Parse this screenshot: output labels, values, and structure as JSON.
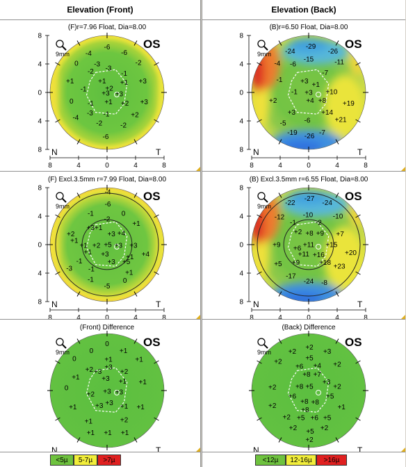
{
  "columns": [
    {
      "title": "Elevation (Front)",
      "panels": [
        {
          "subtitle": "(F)r=7.96 Float, Dia=8.00",
          "eye": "OS",
          "zoom_label": "9mm",
          "nasal_label": "N",
          "temporal_label": "T",
          "x_ticks": [
            "8",
            "4",
            "0",
            "4",
            "8"
          ],
          "y_ticks": [
            "8",
            "4",
            "0",
            "4",
            "8"
          ],
          "map_style": "front",
          "inner_circle": false,
          "values": [
            [
              "-6",
              "cx:0,cy:-6.4"
            ],
            [
              "-4",
              "cx:-2.6,cy:-5.5"
            ],
            [
              "-6",
              "cx:2.4,cy:-5.6"
            ],
            [
              "-3",
              "cx:-1.4,cy:-4"
            ],
            [
              "-2",
              "cx:4.4,cy:-4.2"
            ],
            [
              "0",
              "cx:-4.3,cy:-4.1"
            ],
            [
              "-2",
              "cx:-2.3,cy:-3"
            ],
            [
              "-3",
              "cx:0.2,cy:-3.4"
            ],
            [
              "-1",
              "cx:2.4,cy:-2.7"
            ],
            [
              "+1",
              "cx:-5.2,cy:-1.6"
            ],
            [
              "+1",
              "cx:-0.7,cy:-1.6"
            ],
            [
              "+1",
              "cx:2.4,cy:-1.4"
            ],
            [
              "+3",
              "cx:5,cy:-1.6"
            ],
            [
              "-1",
              "cx:-3.3,cy:-0.5"
            ],
            [
              "+2",
              "cx:0.3,cy:-0.6"
            ],
            [
              "+3",
              "cx:-0.2,cy:0.1"
            ],
            [
              "+3",
              "cx:1.7,cy:0.2"
            ],
            [
              "0",
              "cx:-5,cy:1.2"
            ],
            [
              "-1",
              "cx:-2.3,cy:1.5"
            ],
            [
              "+1",
              "cx:0.2,cy:1.3"
            ],
            [
              "+2",
              "cx:2.5,cy:1.5"
            ],
            [
              "+3",
              "cx:5.2,cy:1.3"
            ],
            [
              "-3",
              "cx:-2.4,cy:2.9"
            ],
            [
              "-1",
              "cx:-0.1,cy:3"
            ],
            [
              "+2",
              "cx:3.9,cy:3.1"
            ],
            [
              "-4",
              "cx:-4.4,cy:3.5"
            ],
            [
              "-2",
              "cx:-1.1,cy:4.3"
            ],
            [
              "-2",
              "cx:2.3,cy:4.6"
            ],
            [
              "-6",
              "cx:-0.2,cy:6.2"
            ]
          ]
        },
        {
          "subtitle": "(F) Excl.3.5mm r=7.99 Float, Dia=8.00",
          "eye": "OS",
          "zoom_label": "9mm",
          "nasal_label": "N",
          "temporal_label": "T",
          "x_ticks": [
            "8",
            "4",
            "0",
            "4",
            "8"
          ],
          "y_ticks": [
            "8",
            "4",
            "0",
            "4",
            "8"
          ],
          "map_style": "front_excl",
          "inner_circle": true,
          "values": [
            [
              "-4",
              "cx:0.1,cy:-7.4"
            ],
            [
              "-6",
              "cx:0.1,cy:-5.7"
            ],
            [
              "-1",
              "cx:-2.3,cy:-4.4"
            ],
            [
              "0",
              "cx:2.3,cy:-4.4"
            ],
            [
              "-2",
              "cx:0,cy:-3.6"
            ],
            [
              "+3",
              "cx:-2.3,cy:-2.4"
            ],
            [
              "+1",
              "cx:-1.2,cy:-2.4"
            ],
            [
              "+1",
              "cx:4.1,cy:-3"
            ],
            [
              "+2",
              "cx:-5.1,cy:-1.5"
            ],
            [
              "+3",
              "cx:0.6,cy:-1.5"
            ],
            [
              "+4",
              "cx:2,cy:-1.6"
            ],
            [
              "+1",
              "cx:-4.6,cy:-0.6"
            ],
            [
              "+1",
              "cx:-3.3,cy:0.1"
            ],
            [
              "+2",
              "cx:-1.5,cy:0.1"
            ],
            [
              "+5",
              "cx:0.1,cy:0"
            ],
            [
              "+3",
              "cx:1.6,cy:0.1"
            ],
            [
              "+3",
              "cx:3.7,cy:0.1"
            ],
            [
              "+1",
              "cx:-2.7,cy:1"
            ],
            [
              "+3",
              "cx:-0.3,cy:1.3"
            ],
            [
              "+1",
              "cx:3.2,cy:1.7"
            ],
            [
              "+4",
              "cx:5.4,cy:1.3"
            ],
            [
              "-1",
              "cx:-3.9,cy:2.3"
            ],
            [
              "+3",
              "cx:0.6,cy:2.4"
            ],
            [
              "+5",
              "cx:2.7,cy:2.4"
            ],
            [
              "-3",
              "cx:-5.3,cy:3.3"
            ],
            [
              "-1",
              "cx:-2.2,cy:3.4"
            ],
            [
              "+1",
              "cx:3.1,cy:3.9"
            ],
            [
              "-1",
              "cx:-2.3,cy:4.9"
            ],
            [
              "0",
              "cx:2.5,cy:5"
            ],
            [
              "-5",
              "cx:0,cy:5.8"
            ]
          ]
        },
        {
          "subtitle": "(Front) Difference",
          "eye": "OS",
          "zoom_label": "9mm",
          "nasal_label": "N",
          "temporal_label": "T",
          "x_ticks": [],
          "y_ticks": [],
          "map_style": "diff",
          "inner_circle": false,
          "values": [
            [
              "0",
              "cx:0,cy:-6.6"
            ],
            [
              "0",
              "cx:-2.2,cy:-5.6"
            ],
            [
              "+1",
              "cx:2.3,cy:-5.6"
            ],
            [
              "0",
              "cx:-4.6,cy:-4.5"
            ],
            [
              "+1",
              "cx:0.2,cy:-4.4"
            ],
            [
              "+1",
              "cx:4.5,cy:-4.4"
            ],
            [
              "+2",
              "cx:-2.5,cy:-3"
            ],
            [
              "+3",
              "cx:-1.3,cy:-2.7"
            ],
            [
              "+2",
              "cx:2.4,cy:-2.7"
            ],
            [
              "+3",
              "cx:0.2,cy:-3.3"
            ],
            [
              "+1",
              "cx:-4.4,cy:-1.9"
            ],
            [
              "+3",
              "cx:-0.2,cy:-1.7"
            ],
            [
              "+1",
              "cx:2.2,cy:-1.3"
            ],
            [
              "+1",
              "cx:5,cy:-1.2"
            ],
            [
              "0",
              "cx:-5.7,cy:-0.4"
            ],
            [
              "+2",
              "cx:-2.3,cy:0.5"
            ],
            [
              "+3",
              "cx:0,cy:0.1"
            ],
            [
              "+3",
              "cx:1.7,cy:0.2"
            ],
            [
              "+1",
              "cx:-4.8,cy:2.3"
            ],
            [
              "+3",
              "cx:-1.1,cy:2.1"
            ],
            [
              "+3",
              "cx:0.3,cy:1.7"
            ],
            [
              "+1",
              "cx:2.4,cy:2.2"
            ],
            [
              "+1",
              "cx:4.7,cy:2.3"
            ],
            [
              "+1",
              "cx:-2.6,cy:4.3"
            ],
            [
              "+2",
              "cx:2.4,cy:4.1"
            ],
            [
              "+1",
              "cx:-2.3,cy:5.9"
            ],
            [
              "+1",
              "cx:0.1,cy:5.9"
            ],
            [
              "+1",
              "cx:2.5,cy:5.9"
            ]
          ]
        }
      ],
      "legend": [
        {
          "label": "<5µ",
          "color": "#6ec23e"
        },
        {
          "label": "5-7µ",
          "color": "#f2ee3a"
        },
        {
          "label": ">7µ",
          "color": "#e02020"
        }
      ]
    },
    {
      "title": "Elevation (Back)",
      "panels": [
        {
          "subtitle": "(B)r=6.50 Float, Dia=8.00",
          "eye": "OS",
          "zoom_label": "9mm",
          "nasal_label": "N",
          "temporal_label": "T",
          "x_ticks": [
            "8",
            "4",
            "0",
            "4",
            "8"
          ],
          "y_ticks": [
            "8",
            "4",
            "0",
            "4",
            "8"
          ],
          "map_style": "back",
          "inner_circle": false,
          "values": [
            [
              "-29",
              "cx:0.3,cy:-6.5"
            ],
            [
              "-24",
              "cx:-2.6,cy:-5.8"
            ],
            [
              "-26",
              "cx:3.4,cy:-5.8"
            ],
            [
              "-15",
              "cx:0,cy:-4.7"
            ],
            [
              "-4",
              "cx:-4.4,cy:-4.1"
            ],
            [
              "-6",
              "cx:-2.2,cy:-4"
            ],
            [
              "-11",
              "cx:4.3,cy:-4.3"
            ],
            [
              "-7",
              "cx:2.3,cy:-2.8"
            ],
            [
              "-1",
              "cx:-4.1,cy:-1.8"
            ],
            [
              "+3",
              "cx:-0.6,cy:-1.6"
            ],
            [
              "+1",
              "cx:1,cy:-1.1"
            ],
            [
              "-1",
              "cx:-2,cy:-0.1"
            ],
            [
              "+3",
              "cx:0,cy:0"
            ],
            [
              "+10",
              "cx:3.2,cy:-0.1"
            ],
            [
              "+2",
              "cx:-5,cy:1.1"
            ],
            [
              "+4",
              "cx:0.2,cy:1.1"
            ],
            [
              "+8",
              "cx:1.9,cy:1.1"
            ],
            [
              "+19",
              "cx:5.6,cy:1.5"
            ],
            [
              "+3",
              "cx:-2.4,cy:2.8"
            ],
            [
              "+14",
              "cx:2.6,cy:2.8"
            ],
            [
              "-5",
              "cx:-3.6,cy:4.3"
            ],
            [
              "+21",
              "cx:4.5,cy:3.8"
            ],
            [
              "-6",
              "cx:-0.2,cy:3.9"
            ],
            [
              "-19",
              "cx:-2.3,cy:5.6"
            ],
            [
              "-26",
              "cx:0.1,cy:6.1"
            ],
            [
              "-7",
              "cx:1.9,cy:5.6"
            ]
          ]
        },
        {
          "subtitle": "(B) Excl.3.5mm r=6.55 Float, Dia=8.00",
          "eye": "OS",
          "zoom_label": "9mm",
          "nasal_label": "N",
          "temporal_label": "T",
          "x_ticks": [
            "8",
            "4",
            "0",
            "4",
            "8"
          ],
          "y_ticks": [
            "8",
            "4",
            "0",
            "4",
            "8"
          ],
          "map_style": "back_excl",
          "inner_circle": true,
          "values": [
            [
              "-27",
              "cx:0.1,cy:-6.5"
            ],
            [
              "-22",
              "cx:-2.6,cy:-5.9"
            ],
            [
              "-24",
              "cx:2.6,cy:-5.9"
            ],
            [
              "-12",
              "cx:-4.1,cy:-3.9"
            ],
            [
              "-10",
              "cx:-0.1,cy:-4.2"
            ],
            [
              "-10",
              "cx:4.1,cy:-4"
            ],
            [
              "-1",
              "cx:-2.2,cy:-3.1"
            ],
            [
              "-2",
              "cx:1.4,cy:-3.1"
            ],
            [
              "+2",
              "cx:-1.5,cy:-1.8"
            ],
            [
              "+8",
              "cx:0.1,cy:-1.6"
            ],
            [
              "+9",
              "cx:1.6,cy:-1.6"
            ],
            [
              "+7",
              "cx:4.4,cy:-1.5"
            ],
            [
              "+9",
              "cx:-4.5,cy:0"
            ],
            [
              "+11",
              "cx:0,cy:0"
            ],
            [
              "+15",
              "cx:3.2,cy:0"
            ],
            [
              "+6",
              "cx:-1.6,cy:0.5"
            ],
            [
              "+11",
              "cx:-0.7,cy:1.3"
            ],
            [
              "+16",
              "cx:1.4,cy:1.4"
            ],
            [
              "+20",
              "cx:5.9,cy:1.1"
            ],
            [
              "+5",
              "cx:-4.3,cy:2.7"
            ],
            [
              "+9",
              "cx:-1.8,cy:2.5"
            ],
            [
              "+18",
              "cx:2.3,cy:2.5"
            ],
            [
              "+23",
              "cx:4.3,cy:3"
            ],
            [
              "-17",
              "cx:-2.5,cy:4.4"
            ],
            [
              "-24",
              "cx:0,cy:5.1"
            ],
            [
              "-8",
              "cx:2.2,cy:5.3"
            ]
          ]
        },
        {
          "subtitle": "(Back) Difference",
          "eye": "OS",
          "zoom_label": "9mm",
          "nasal_label": "N",
          "temporal_label": "T",
          "x_ticks": [],
          "y_ticks": [],
          "map_style": "diff",
          "inner_circle": false,
          "values": [
            [
              "+2",
              "cx:-2.3,cy:-5.5"
            ],
            [
              "+2",
              "cx:0.1,cy:-6.1"
            ],
            [
              "+3",
              "cx:2.6,cy:-5.5"
            ],
            [
              "+5",
              "cx:0.1,cy:-4.6"
            ],
            [
              "+2",
              "cx:-4.3,cy:-4.1"
            ],
            [
              "+6",
              "cx:-1.3,cy:-3.4"
            ],
            [
              "+4",
              "cx:1.2,cy:-3.5"
            ],
            [
              "+2",
              "cx:4,cy:-3.7"
            ],
            [
              "+8",
              "cx:-0.3,cy:-2.3"
            ],
            [
              "+7",
              "cx:1.2,cy:-2.3"
            ],
            [
              "+3",
              "cx:2.5,cy:-1.2"
            ],
            [
              "+2",
              "cx:-5.1,cy:-0.5"
            ],
            [
              "+8",
              "cx:-1.3,cy:-0.6"
            ],
            [
              "+5",
              "cx:0.1,cy:-0.6"
            ],
            [
              "+2",
              "cx:4,cy:-0.6"
            ],
            [
              "+6",
              "cx:-2.3,cy:0.8"
            ],
            [
              "+8",
              "cx:-0.6,cy:1.5"
            ],
            [
              "+8",
              "cx:0.9,cy:1.6"
            ],
            [
              "+5",
              "cx:3,cy:0.8"
            ],
            [
              "+2",
              "cx:-5.1,cy:2.1"
            ],
            [
              "+8",
              "cx:-0.5,cy:2.7"
            ],
            [
              "+1",
              "cx:4.6,cy:2.3"
            ],
            [
              "+2",
              "cx:-3.1,cy:3.7"
            ],
            [
              "+5",
              "cx:-1.1,cy:3.8"
            ],
            [
              "+6",
              "cx:0.8,cy:3.8"
            ],
            [
              "+5",
              "cx:2.6,cy:3.8"
            ],
            [
              "+2",
              "cx:-2.2,cy:5.2"
            ],
            [
              "+5",
              "cx:0.2,cy:5.7"
            ],
            [
              "+2",
              "cx:2.2,cy:5.2"
            ],
            [
              "+2",
              "cx:0.1,cy:6.9"
            ]
          ]
        }
      ],
      "legend": [
        {
          "label": "<12µ",
          "color": "#6ec23e"
        },
        {
          "label": "12-16µ",
          "color": "#f2ee3a"
        },
        {
          "label": ">16µ",
          "color": "#e02020"
        }
      ]
    }
  ]
}
